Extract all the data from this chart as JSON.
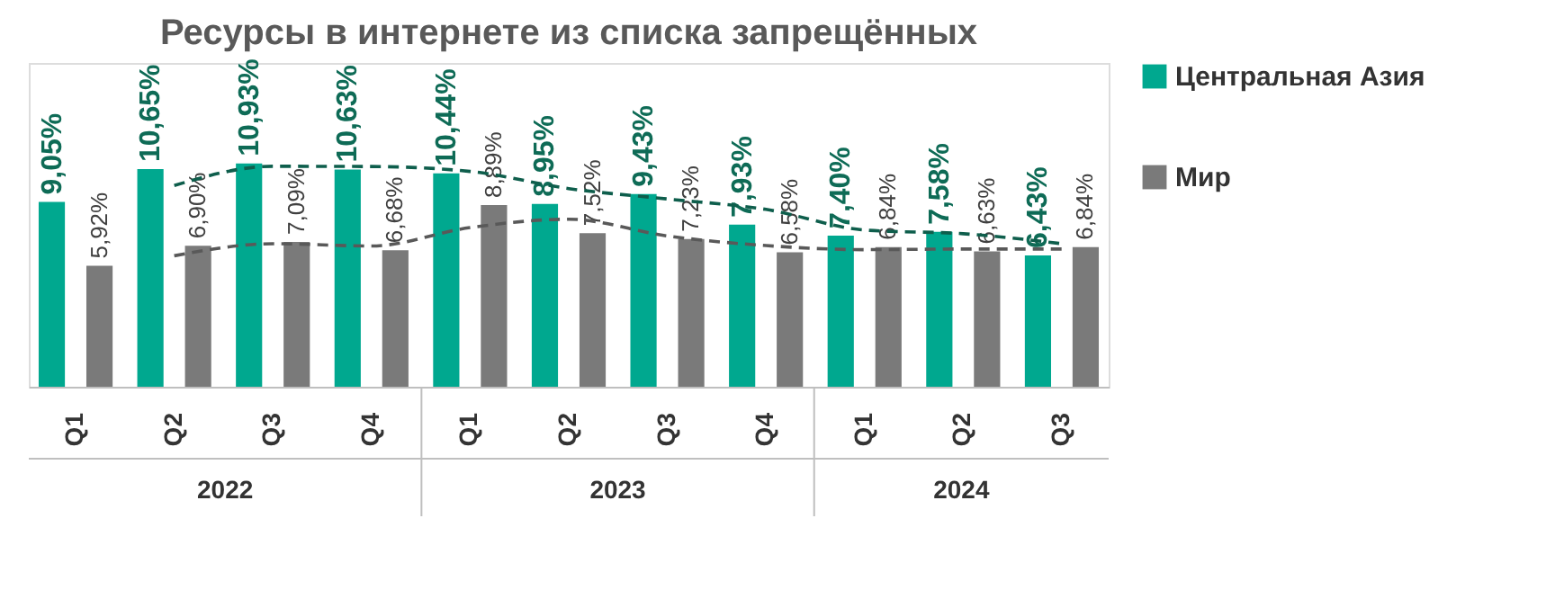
{
  "chart_data": {
    "type": "bar",
    "title": "Ресурсы в интернете из списка запрещённых",
    "categories": [
      "Q1",
      "Q2",
      "Q3",
      "Q4",
      "Q1",
      "Q2",
      "Q3",
      "Q4",
      "Q1",
      "Q2",
      "Q3"
    ],
    "series": [
      {
        "name": "Центральная Азия",
        "color": "#00a88f",
        "values": [
          9.05,
          10.65,
          10.93,
          10.63,
          10.44,
          8.95,
          9.43,
          7.93,
          7.4,
          7.58,
          6.43
        ],
        "value_labels": [
          "9,05%",
          "10,65%",
          "10,93%",
          "10,63%",
          "10,44%",
          "8,95%",
          "9,43%",
          "7,93%",
          "7,40%",
          "7,58%",
          "6,43%"
        ]
      },
      {
        "name": "Мир",
        "color": "#7a7a7a",
        "values": [
          5.92,
          6.9,
          7.09,
          6.68,
          8.89,
          7.52,
          7.23,
          6.58,
          6.84,
          6.63,
          6.84
        ],
        "value_labels": [
          "5,92%",
          "6,90%",
          "7,09%",
          "6,68%",
          "8,89%",
          "7,52%",
          "7,23%",
          "6,58%",
          "6,84%",
          "6,63%",
          "6,84%"
        ]
      },
      {
        "type": "line",
        "color": "#0e5e4c",
        "line_style": "dashed",
        "values": [
          null,
          9.85,
          10.79,
          10.78,
          10.54,
          9.7,
          9.19,
          8.68,
          7.67,
          7.49,
          7.0
        ]
      },
      {
        "type": "line",
        "color": "#595959",
        "line_style": "dashed",
        "values": [
          null,
          6.41,
          7.0,
          6.89,
          7.79,
          8.2,
          7.38,
          6.91,
          6.71,
          6.74,
          6.74
        ]
      }
    ],
    "annotations": [
      "2022",
      "2023",
      "2024"
    ],
    "legend": "right"
  }
}
